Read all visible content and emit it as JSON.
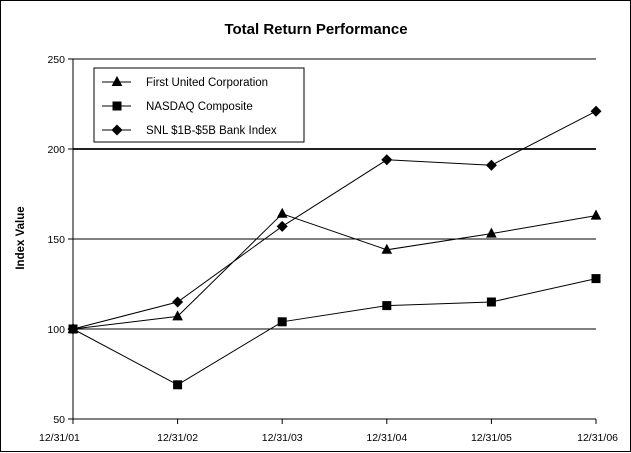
{
  "chart_data": {
    "type": "line",
    "title": "Total Return Performance",
    "xlabel": "",
    "ylabel": "Index Value",
    "categories": [
      "12/31/01",
      "12/31/02",
      "12/31/03",
      "12/31/04",
      "12/31/05",
      "12/31/06"
    ],
    "ylim": [
      50,
      250
    ],
    "yticks": [
      50,
      100,
      150,
      200,
      250
    ],
    "grid": "horizontal",
    "legend_position": "top-left",
    "series": [
      {
        "name": "First United Corporation",
        "marker": "triangle",
        "values": [
          100,
          107,
          164,
          144,
          153,
          163
        ]
      },
      {
        "name": "NASDAQ Composite",
        "marker": "square",
        "values": [
          100,
          69,
          104,
          113,
          115,
          128
        ]
      },
      {
        "name": "SNL $1B-$5B Bank Index",
        "marker": "diamond",
        "values": [
          100,
          115,
          157,
          194,
          191,
          221
        ]
      }
    ],
    "colors": {
      "line": "#000000",
      "background": "#ffffff",
      "grid": "#000000"
    }
  }
}
